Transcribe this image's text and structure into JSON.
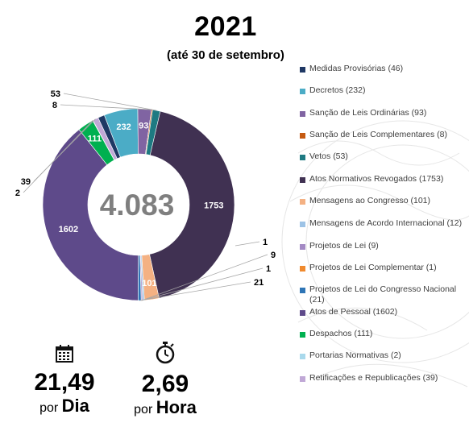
{
  "header": {
    "title": "2021",
    "subtitle": "(até 30 de setembro)"
  },
  "chart_data": {
    "type": "pie",
    "donut": true,
    "center_label": "4.083",
    "legend_position": "right",
    "series": [
      {
        "name": "Medidas Provisórias (46)",
        "value": 46,
        "label": "",
        "color": "#1F3864"
      },
      {
        "name": "Decretos (232)",
        "value": 232,
        "label": "232",
        "color": "#4BACC6"
      },
      {
        "name": "Sanção de Leis Ordinárias (93)",
        "value": 93,
        "label": "93",
        "color": "#8064A2"
      },
      {
        "name": "Sanção de Leis Complementares (8)",
        "value": 8,
        "label": "8",
        "color": "#C55A11"
      },
      {
        "name": "Vetos (53)",
        "value": 53,
        "label": "53",
        "color": "#1E7A82"
      },
      {
        "name": "Atos Normativos Revogados (1753)",
        "value": 1753,
        "label": "1753",
        "color": "#403152"
      },
      {
        "name": "Mensagens ao Congresso (101)",
        "value": 101,
        "label": "101",
        "color": "#F4B183"
      },
      {
        "name": "Mensagens de Acordo Internacional (12)",
        "value": 12,
        "label": "",
        "color": "#9DC3E6"
      },
      {
        "name": "Projetos de Lei (9)",
        "value": 9,
        "label": "9",
        "color": "#A389C4"
      },
      {
        "name": "Projetos de Lei Complementar (1)",
        "value": 1,
        "label": "1",
        "color": "#F08A2E"
      },
      {
        "name": "Projetos de Lei do Congresso Nacional (21)",
        "value": 21,
        "label": "21",
        "color": "#2E75B6"
      },
      {
        "name": "Atos de Pessoal (1602)",
        "value": 1602,
        "label": "1602",
        "color": "#5E4A8A"
      },
      {
        "name": "Despachos (111)",
        "value": 111,
        "label": "111",
        "color": "#00B050"
      },
      {
        "name": "Portarias Normativas (2)",
        "value": 2,
        "label": "2",
        "color": "#A9D9EC"
      },
      {
        "name": "Retificações e Republicações (39)",
        "value": 39,
        "label": "39",
        "color": "#C0A8D6"
      }
    ],
    "extra_labels": [
      "1"
    ]
  },
  "stats": {
    "per_day": {
      "value": "21,49",
      "prefix": "por",
      "unit": "Dia",
      "icon": "calendar-icon"
    },
    "per_hour": {
      "value": "2,69",
      "prefix": "por",
      "unit": "Hora",
      "icon": "stopwatch-icon"
    }
  }
}
